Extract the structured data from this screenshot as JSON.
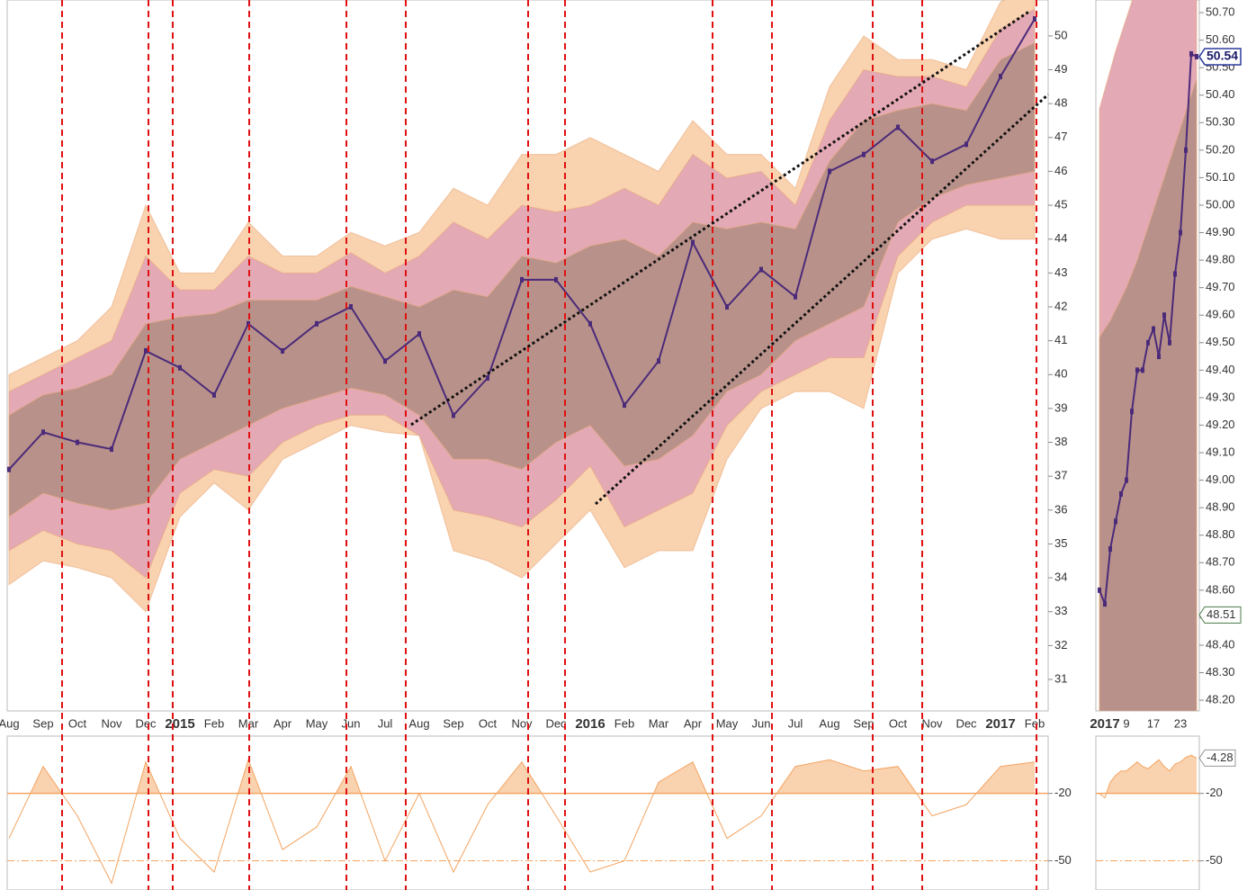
{
  "chart_data": [
    {
      "type": "line",
      "categories": [
        "Aug",
        "Sep",
        "Oct",
        "Nov",
        "Dec",
        "2015",
        "Feb",
        "Mar",
        "Apr",
        "May",
        "Jun",
        "Jul",
        "Aug",
        "Sep",
        "Oct",
        "Nov",
        "Dec",
        "2016",
        "Feb",
        "Mar",
        "Apr",
        "May",
        "Jun",
        "Jul",
        "Aug",
        "Sep",
        "Oct",
        "Nov",
        "Dec",
        "2017",
        "Feb"
      ],
      "values": [
        37.2,
        38.3,
        38.0,
        37.8,
        40.7,
        40.2,
        39.4,
        41.5,
        40.7,
        41.5,
        42.0,
        40.4,
        41.2,
        38.8,
        39.9,
        42.8,
        42.8,
        41.5,
        39.1,
        40.4,
        43.9,
        42.0,
        43.1,
        42.3,
        46.0,
        46.5,
        47.3,
        46.3,
        46.8,
        48.8,
        50.5
      ],
      "color": "#4b2a7a",
      "bands": [
        {
          "color": "#f9d2b0",
          "upper": [
            40,
            40.5,
            41,
            42,
            45,
            43,
            43,
            44.5,
            43.5,
            43.5,
            44.2,
            43.8,
            44.2,
            45.5,
            45,
            46.5,
            46.5,
            47,
            46.5,
            46,
            47.5,
            46.5,
            46.5,
            45.5,
            48.5,
            50,
            49.3,
            49.3,
            49,
            51,
            51.5
          ],
          "lower": [
            33.8,
            34.5,
            34.3,
            34,
            33,
            35.8,
            36.8,
            36,
            37.5,
            38,
            38.5,
            38.3,
            38.2,
            34.8,
            34.5,
            34,
            35,
            36,
            34.3,
            34.8,
            34.8,
            37.5,
            39,
            39.5,
            39.5,
            39,
            43,
            44,
            44.3,
            44,
            44
          ]
        },
        {
          "color": "#e3a9b4",
          "upper": [
            39.5,
            40,
            40.5,
            41,
            43.5,
            42.5,
            42.5,
            43.5,
            43,
            43,
            43.6,
            43,
            43.5,
            44.5,
            44,
            45,
            44.8,
            45,
            45.5,
            45,
            46.5,
            45.8,
            46,
            45,
            47.5,
            49,
            48.8,
            48.8,
            48.5,
            50.2,
            50.8
          ],
          "lower": [
            34.8,
            35.4,
            35,
            34.8,
            34,
            36.5,
            37.2,
            37,
            38,
            38.5,
            38.8,
            38.8,
            38.2,
            36,
            35.8,
            35.5,
            36.3,
            37.3,
            35.5,
            36,
            36.5,
            38.5,
            39.5,
            40,
            40.5,
            40.5,
            43.5,
            44.5,
            45,
            45,
            45
          ]
        },
        {
          "color": "#b8928a",
          "upper": [
            38.8,
            39.4,
            39.6,
            40,
            41.5,
            41.7,
            41.8,
            42.2,
            42.2,
            42.2,
            42.6,
            42.3,
            42,
            42.5,
            42.3,
            43.5,
            43.3,
            43.8,
            44,
            43.5,
            44.5,
            44.3,
            44.5,
            44.3,
            46.3,
            47.5,
            47.8,
            48,
            47.8,
            49.3,
            49.8
          ],
          "lower": [
            35.8,
            36.5,
            36.2,
            36,
            36.2,
            37.5,
            38,
            38.5,
            39,
            39.3,
            39.6,
            39.4,
            38.8,
            37.5,
            37.5,
            37.2,
            38,
            38.5,
            37.3,
            37.5,
            38.2,
            39.5,
            40,
            41,
            41.5,
            42,
            44.5,
            45.2,
            45.6,
            45.8,
            46
          ]
        }
      ],
      "ylim": [
        30.07,
        51.06
      ],
      "yticks": [
        31,
        32,
        33,
        34,
        35,
        36,
        37,
        38,
        39,
        40,
        41,
        42,
        43,
        44,
        45,
        46,
        47,
        48,
        49,
        50
      ]
    },
    {
      "type": "area",
      "values": [
        -40,
        -8,
        -30,
        -60,
        -6,
        -40,
        -55,
        -5,
        -45,
        -35,
        -8,
        -50,
        -20,
        -55,
        -25,
        -6,
        -30,
        -55,
        -50,
        -15,
        -6,
        -40,
        -30,
        -8,
        -5,
        -10,
        -8,
        -30,
        -25,
        -8,
        -6
      ],
      "color": "#f4a460",
      "fill": "#f9d2b0",
      "ylim": [
        -63,
        5.5
      ],
      "yticks": [
        -20,
        -50
      ]
    },
    {
      "type": "line",
      "categories": [
        null,
        "2017",
        null,
        null,
        null,
        "9",
        null,
        null,
        null,
        null,
        "17",
        null,
        null,
        null,
        null,
        "23",
        null,
        null,
        null
      ],
      "values": [
        48.6,
        48.55,
        48.75,
        48.85,
        48.95,
        49.0,
        49.25,
        49.4,
        49.4,
        49.5,
        49.55,
        49.45,
        49.6,
        49.5,
        49.75,
        49.9,
        50.2,
        50.55,
        50.54
      ],
      "color": "#4b2a7a",
      "bands": [
        {
          "color": "#e3a9b4",
          "upper": [
            50.35,
            50.42,
            50.49,
            50.56,
            50.62,
            50.68,
            50.74,
            50.8,
            50.86,
            50.92,
            50.98,
            51.03,
            51.08,
            51.13,
            51.18,
            51.22,
            51.26,
            51.3,
            51.34
          ]
        },
        {
          "color": "#b8928a",
          "upper": [
            49.52,
            49.55,
            49.58,
            49.62,
            49.66,
            49.7,
            49.75,
            49.8,
            49.86,
            49.92,
            49.98,
            50.04,
            50.1,
            50.16,
            50.22,
            50.28,
            50.34,
            50.4,
            50.46
          ]
        }
      ],
      "reference_value": 48.51,
      "ylim": [
        48.161,
        50.746
      ],
      "yticks": [
        {
          "value": 48.2,
          "label": "48.20"
        },
        {
          "value": 48.3,
          "label": "48.30"
        },
        {
          "value": 48.4,
          "label": "48.40"
        },
        {
          "value": 48.5,
          "label": "48.50"
        },
        {
          "value": 48.6,
          "label": "48.60"
        },
        {
          "value": 48.7,
          "label": "48.70"
        },
        {
          "value": 48.8,
          "label": "48.80"
        },
        {
          "value": 48.9,
          "label": "48.90"
        },
        {
          "value": 49.0,
          "label": "49.00"
        },
        {
          "value": 49.1,
          "label": "49.10"
        },
        {
          "value": 49.2,
          "label": "49.20"
        },
        {
          "value": 49.3,
          "label": "49.30"
        },
        {
          "value": 49.4,
          "label": "49.40"
        },
        {
          "value": 49.5,
          "label": "49.50"
        },
        {
          "value": 49.6,
          "label": "49.60"
        },
        {
          "value": 49.7,
          "label": "49.70"
        },
        {
          "value": 49.8,
          "label": "49.80"
        },
        {
          "value": 49.9,
          "label": "49.90"
        },
        {
          "value": 50.0,
          "label": "50.00"
        },
        {
          "value": 50.1,
          "label": "50.10"
        },
        {
          "value": 50.2,
          "label": "50.20"
        },
        {
          "value": 50.3,
          "label": "50.30"
        },
        {
          "value": 50.4,
          "label": "50.40"
        },
        {
          "value": 50.5,
          "label": "50.50"
        },
        {
          "value": 50.6,
          "label": "50.60"
        },
        {
          "value": 50.7,
          "label": "50.70"
        }
      ]
    },
    {
      "type": "area",
      "values": [
        -20,
        -22,
        -15,
        -12,
        -10,
        -10,
        -8,
        -6,
        -8,
        -9,
        -7,
        -5,
        -8,
        -10,
        -7,
        -6,
        -4,
        -3,
        -4.28
      ],
      "color": "#f4a460",
      "fill": "#f9d2b0",
      "ylim": [
        -63,
        5.5
      ],
      "yticks": [
        -20,
        -50
      ]
    }
  ]
}
